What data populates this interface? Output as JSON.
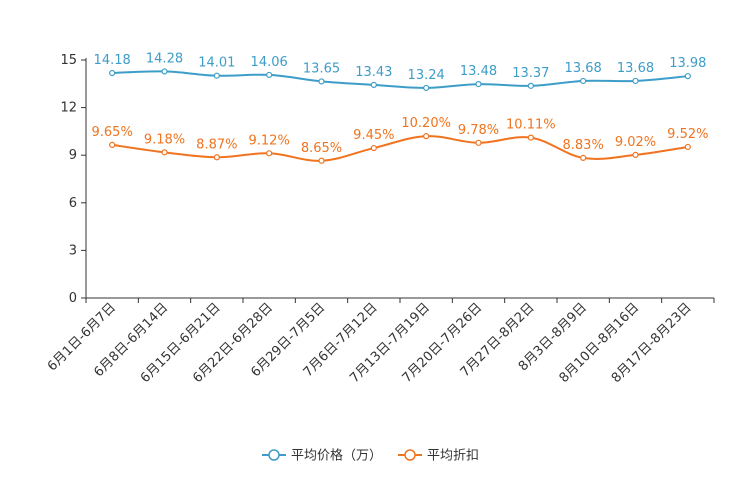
{
  "chart_data": {
    "type": "line",
    "categories": [
      "6月1日-6月7日",
      "6月8日-6月14日",
      "6月15日-6月21日",
      "6月22日-6月28日",
      "6月29日-7月5日",
      "7月6日-7月12日",
      "7月13日-7月19日",
      "7月20日-7月26日",
      "7月27日-8月2日",
      "8月3日-8月9日",
      "8月10日-8月16日",
      "8月17日-8月23日"
    ],
    "ylim": [
      0,
      15
    ],
    "yticks": [
      0,
      3,
      6,
      9,
      12,
      15
    ],
    "grid": false,
    "legend_position": "bottom-center",
    "series": [
      {
        "name": "平均价格（万）",
        "color": "#3d9dc9",
        "values": [
          14.18,
          14.28,
          14.01,
          14.06,
          13.65,
          13.43,
          13.24,
          13.48,
          13.37,
          13.68,
          13.68,
          13.98
        ],
        "labels": [
          "14.18",
          "14.28",
          "14.01",
          "14.06",
          "13.65",
          "13.43",
          "13.24",
          "13.48",
          "13.37",
          "13.68",
          "13.68",
          "13.98"
        ]
      },
      {
        "name": "平均折扣",
        "color": "#f0741f",
        "values": [
          9.65,
          9.18,
          8.87,
          9.12,
          8.65,
          9.45,
          10.2,
          9.78,
          10.11,
          8.83,
          9.02,
          9.52
        ],
        "labels": [
          "9.65%",
          "9.18%",
          "8.87%",
          "9.12%",
          "8.65%",
          "9.45%",
          "10.20%",
          "9.78%",
          "10.11%",
          "8.83%",
          "9.02%",
          "9.52%"
        ]
      }
    ]
  }
}
